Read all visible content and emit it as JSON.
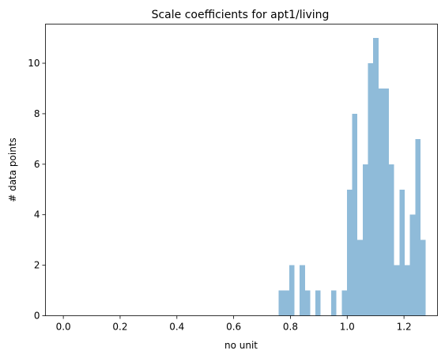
{
  "chart_data": {
    "type": "bar",
    "title": "Scale coefficients for apt1/living",
    "xlabel": "no unit",
    "ylabel": "# data points",
    "xlim": [
      -0.063,
      1.318
    ],
    "ylim": [
      0,
      11.55
    ],
    "xticks": [
      0.0,
      0.2,
      0.4,
      0.6,
      0.8,
      1.0,
      1.2
    ],
    "xtick_labels": [
      "0.0",
      "0.2",
      "0.4",
      "0.6",
      "0.8",
      "1.0",
      "1.2"
    ],
    "yticks": [
      0,
      2,
      4,
      6,
      8,
      10
    ],
    "ytick_labels": [
      "0",
      "2",
      "4",
      "6",
      "8",
      "10"
    ],
    "grid": false,
    "bar_color": "#8fbbd9",
    "bin_width": 0.0185,
    "bins": [
      {
        "x": 0.7585,
        "count": 1
      },
      {
        "x": 0.777,
        "count": 1
      },
      {
        "x": 0.7955,
        "count": 2
      },
      {
        "x": 0.8325,
        "count": 2
      },
      {
        "x": 0.851,
        "count": 1
      },
      {
        "x": 0.888,
        "count": 1
      },
      {
        "x": 0.9435,
        "count": 1
      },
      {
        "x": 0.9805,
        "count": 1
      },
      {
        "x": 0.999,
        "count": 5
      },
      {
        "x": 1.0175,
        "count": 8
      },
      {
        "x": 1.036,
        "count": 3
      },
      {
        "x": 1.0545,
        "count": 6
      },
      {
        "x": 1.073,
        "count": 10
      },
      {
        "x": 1.0915,
        "count": 11
      },
      {
        "x": 1.11,
        "count": 9
      },
      {
        "x": 1.1285,
        "count": 9
      },
      {
        "x": 1.147,
        "count": 6
      },
      {
        "x": 1.1655,
        "count": 2
      },
      {
        "x": 1.184,
        "count": 5
      },
      {
        "x": 1.2025,
        "count": 2
      },
      {
        "x": 1.221,
        "count": 4
      },
      {
        "x": 1.2395,
        "count": 7
      },
      {
        "x": 1.258,
        "count": 3
      }
    ]
  }
}
